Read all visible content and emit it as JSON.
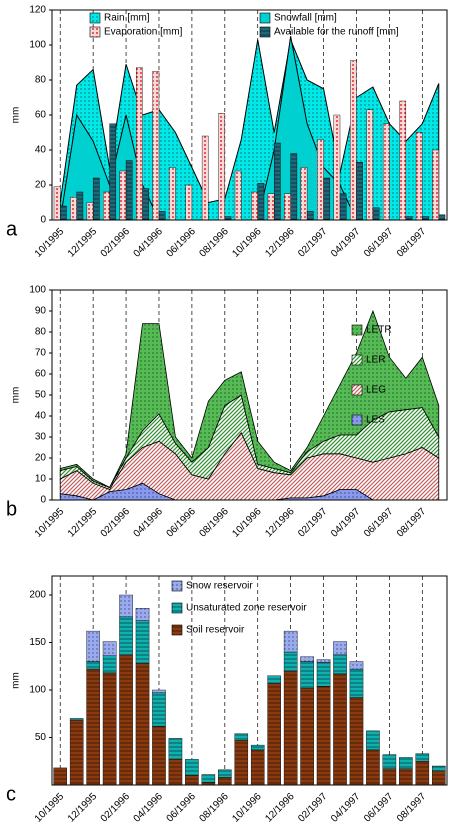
{
  "chart_data": [
    {
      "type": "combo",
      "label": "a",
      "ylabel": "mm",
      "legend": "top",
      "vgrid": true,
      "categories": [
        "10/1995",
        null,
        "12/1995",
        null,
        "02/1996",
        null,
        "04/1996",
        null,
        "06/1996",
        null,
        "08/1996",
        null,
        "10/1996",
        null,
        "12/1996",
        null,
        "02/1997",
        null,
        "04/1997",
        null,
        "06/1997",
        null,
        "08/1997",
        null
      ],
      "ylim": [
        0,
        120
      ],
      "yticks": [
        0,
        20,
        40,
        60,
        80,
        100,
        120
      ],
      "series": [
        {
          "name": "Rain [mm]",
          "kind": "area",
          "color": "#00e8e8",
          "pattern": "dots",
          "values": [
            10,
            77,
            86,
            30,
            89,
            60,
            63,
            50,
            30,
            10,
            12,
            46,
            103,
            50,
            103,
            80,
            75,
            27,
            70,
            76,
            55,
            45,
            55,
            78
          ]
        },
        {
          "name": "Snowfall [mm]",
          "kind": "area",
          "color": "#00d0d0",
          "pattern": "solid",
          "values": [
            0,
            60,
            45,
            20,
            60,
            20,
            0,
            0,
            0,
            0,
            0,
            0,
            0,
            40,
            105,
            55,
            30,
            20,
            0,
            0,
            0,
            0,
            0,
            0
          ]
        },
        {
          "name": "Evaporation [mm]",
          "kind": "bar",
          "color": "#f7b0b0",
          "pattern": "reddots",
          "values": [
            19,
            13,
            10,
            16,
            28,
            87,
            85,
            30,
            20,
            48,
            61,
            28,
            16,
            15,
            15,
            30,
            46,
            60,
            91,
            63,
            55,
            68,
            50,
            40
          ]
        },
        {
          "name": "Available for the runoff [mm]",
          "kind": "bar",
          "color": "#1f6a7a",
          "pattern": "hstripes",
          "values": [
            8,
            16,
            24,
            55,
            34,
            18,
            5,
            0,
            0,
            0,
            2,
            0,
            21,
            44,
            38,
            5,
            24,
            15,
            33,
            7,
            0,
            2,
            2,
            3
          ]
        }
      ]
    },
    {
      "type": "area",
      "label": "b",
      "ylabel": "mm",
      "legend": "right",
      "vgrid": true,
      "stacked": true,
      "categories": [
        "10/1995",
        null,
        "12/1995",
        null,
        "02/1996",
        null,
        "04/1996",
        null,
        "06/1996",
        null,
        "08/1996",
        null,
        "10/1996",
        null,
        "12/1996",
        null,
        "02/1997",
        null,
        "04/1997",
        null,
        "06/1997",
        null,
        "08/1997",
        null
      ],
      "ylim": [
        0,
        100
      ],
      "yticks": [
        0,
        10,
        20,
        30,
        40,
        50,
        60,
        70,
        80,
        90,
        100
      ],
      "series": [
        {
          "name": "LES",
          "color": "#8899ee",
          "pattern": "dots",
          "values": [
            3,
            2,
            0,
            4,
            5,
            8,
            3,
            0,
            0,
            0,
            0,
            0,
            0,
            0,
            1,
            1,
            2,
            5,
            5,
            0,
            0,
            0,
            0,
            0
          ]
        },
        {
          "name": "LEG",
          "color": "#c06060",
          "pattern": "diag",
          "values": [
            7,
            12,
            8,
            1,
            13,
            17,
            25,
            22,
            12,
            10,
            22,
            32,
            15,
            13,
            11,
            19,
            20,
            17,
            15,
            18,
            20,
            22,
            25,
            20
          ]
        },
        {
          "name": "LER",
          "color": "#2f8f2f",
          "pattern": "diag",
          "values": [
            4,
            2,
            1,
            1,
            2,
            8,
            13,
            5,
            6,
            15,
            23,
            18,
            2,
            2,
            1,
            3,
            6,
            9,
            11,
            20,
            22,
            21,
            19,
            10
          ]
        },
        {
          "name": "LETR",
          "color": "#55bb55",
          "pattern": "dots",
          "values": [
            1,
            1,
            1,
            0,
            2,
            51,
            43,
            3,
            2,
            22,
            12,
            11,
            11,
            3,
            1,
            2,
            12,
            24,
            39,
            52,
            26,
            15,
            24,
            15
          ]
        }
      ]
    },
    {
      "type": "bar",
      "label": "c",
      "ylabel": "mm",
      "legend": "top",
      "vgrid": true,
      "stacked": true,
      "categories": [
        "10/1995",
        null,
        "12/1995",
        null,
        "02/1996",
        null,
        "04/1996",
        null,
        "06/1996",
        null,
        "08/1996",
        null,
        "10/1996",
        null,
        "12/1996",
        null,
        "02/1997",
        null,
        "04/1997",
        null,
        "06/1997",
        null,
        "08/1997",
        null
      ],
      "ylim": [
        0,
        220
      ],
      "yticks": [
        50,
        100,
        150,
        200
      ],
      "series": [
        {
          "name": "Soil reservoir",
          "color": "#8b3a10",
          "pattern": "hstripes",
          "values": [
            18,
            68,
            122,
            118,
            137,
            128,
            62,
            27,
            10,
            3,
            8,
            47,
            37,
            107,
            120,
            102,
            104,
            117,
            92,
            37,
            17,
            17,
            25,
            15
          ]
        },
        {
          "name": "Unsaturated zone reservoir",
          "color": "#10b0b0",
          "pattern": "hstripes",
          "values": [
            0,
            2,
            8,
            18,
            40,
            45,
            35,
            22,
            17,
            8,
            8,
            7,
            5,
            8,
            20,
            28,
            25,
            20,
            30,
            20,
            15,
            12,
            8,
            5
          ]
        },
        {
          "name": "Snow reservoir",
          "color": "#9aaaf0",
          "pattern": "dots",
          "values": [
            0,
            0,
            32,
            15,
            23,
            13,
            3,
            0,
            0,
            0,
            0,
            0,
            0,
            0,
            22,
            5,
            3,
            14,
            8,
            0,
            0,
            0,
            0,
            0
          ]
        }
      ]
    }
  ]
}
